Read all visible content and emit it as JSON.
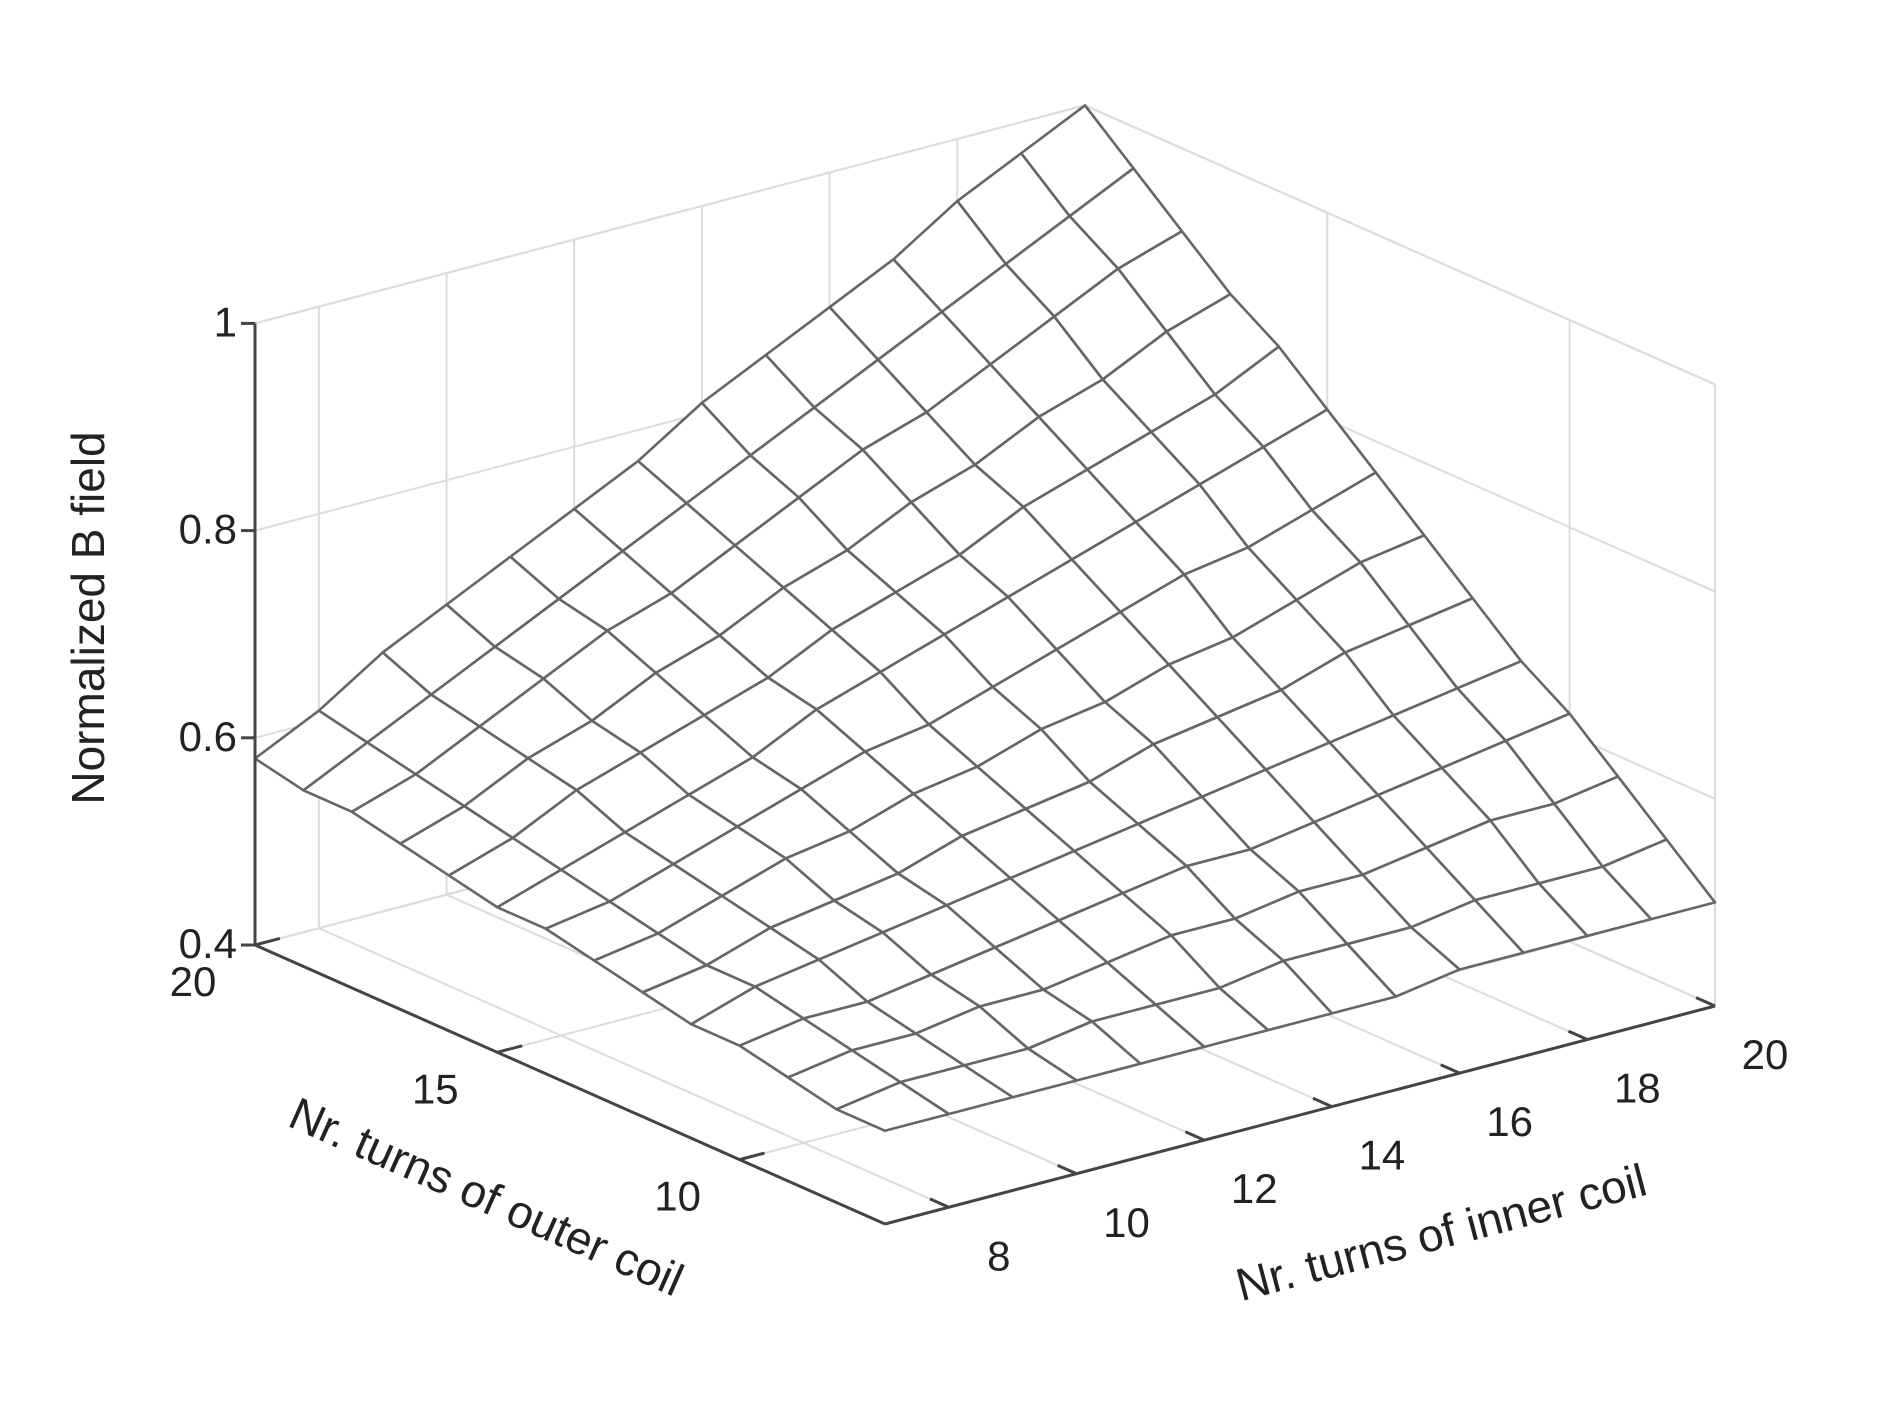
{
  "chart_data": {
    "type": "surface",
    "xlabel": "Nr. turns of inner coil",
    "ylabel": "Nr. turns of outer coil",
    "zlabel": "Normalized B field",
    "x": [
      7,
      8,
      9,
      10,
      11,
      12,
      13,
      14,
      15,
      16,
      17,
      18,
      19,
      20
    ],
    "y": [
      7,
      8,
      9,
      10,
      11,
      12,
      13,
      14,
      15,
      16,
      17,
      18,
      19,
      20
    ],
    "z": [
      [
        0.49,
        0.49,
        0.49,
        0.49,
        0.49,
        0.49,
        0.49,
        0.49,
        0.49,
        0.5,
        0.5,
        0.5,
        0.5,
        0.5
      ],
      [
        0.49,
        0.5,
        0.5,
        0.5,
        0.51,
        0.51,
        0.51,
        0.52,
        0.52,
        0.52,
        0.53,
        0.53,
        0.53,
        0.54
      ],
      [
        0.5,
        0.51,
        0.51,
        0.52,
        0.52,
        0.53,
        0.54,
        0.54,
        0.55,
        0.55,
        0.56,
        0.57,
        0.57,
        0.58
      ],
      [
        0.51,
        0.52,
        0.52,
        0.53,
        0.54,
        0.55,
        0.56,
        0.57,
        0.57,
        0.58,
        0.59,
        0.6,
        0.61,
        0.62
      ],
      [
        0.51,
        0.53,
        0.54,
        0.55,
        0.56,
        0.57,
        0.58,
        0.59,
        0.6,
        0.61,
        0.62,
        0.63,
        0.64,
        0.65
      ],
      [
        0.52,
        0.53,
        0.55,
        0.56,
        0.57,
        0.59,
        0.6,
        0.61,
        0.63,
        0.64,
        0.65,
        0.67,
        0.68,
        0.69
      ],
      [
        0.53,
        0.54,
        0.56,
        0.58,
        0.59,
        0.61,
        0.62,
        0.64,
        0.65,
        0.67,
        0.68,
        0.7,
        0.72,
        0.73
      ],
      [
        0.54,
        0.55,
        0.57,
        0.59,
        0.61,
        0.63,
        0.64,
        0.66,
        0.68,
        0.7,
        0.72,
        0.73,
        0.75,
        0.77
      ],
      [
        0.54,
        0.56,
        0.58,
        0.6,
        0.62,
        0.65,
        0.67,
        0.69,
        0.71,
        0.73,
        0.75,
        0.77,
        0.79,
        0.81
      ],
      [
        0.55,
        0.57,
        0.6,
        0.62,
        0.64,
        0.66,
        0.69,
        0.71,
        0.73,
        0.76,
        0.78,
        0.8,
        0.82,
        0.85
      ],
      [
        0.56,
        0.58,
        0.61,
        0.63,
        0.66,
        0.68,
        0.71,
        0.73,
        0.76,
        0.78,
        0.81,
        0.83,
        0.86,
        0.88
      ],
      [
        0.57,
        0.59,
        0.62,
        0.65,
        0.68,
        0.7,
        0.73,
        0.76,
        0.79,
        0.81,
        0.84,
        0.87,
        0.9,
        0.92
      ],
      [
        0.57,
        0.6,
        0.63,
        0.66,
        0.69,
        0.72,
        0.75,
        0.78,
        0.81,
        0.84,
        0.87,
        0.9,
        0.93,
        0.96
      ],
      [
        0.58,
        0.61,
        0.65,
        0.68,
        0.71,
        0.74,
        0.77,
        0.81,
        0.84,
        0.87,
        0.9,
        0.94,
        0.97,
        1.0
      ]
    ],
    "xlim": [
      7,
      20
    ],
    "ylim": [
      7,
      20
    ],
    "zlim": [
      0.4,
      1
    ],
    "xticks": [
      8,
      10,
      12,
      14,
      16,
      18,
      20
    ],
    "yticks": [
      10,
      15,
      20
    ],
    "zticks": [
      0.4,
      0.6,
      0.8,
      1
    ],
    "grid": true,
    "color": "#ffffff",
    "edgecolor": "#666666"
  }
}
